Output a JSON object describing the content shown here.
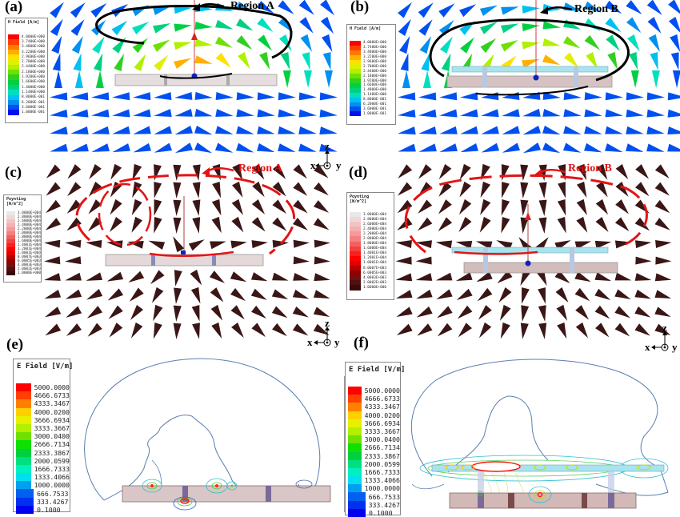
{
  "panels": {
    "a": {
      "label": "(a)",
      "region": "Region A",
      "legend_title": "H Field [A/m]"
    },
    "b": {
      "label": "(b)",
      "region": "Region B",
      "legend_title": "H Field [A/m]"
    },
    "c": {
      "label": "(c)",
      "region": "Region A",
      "legend_title": "Poynting\n[W/m^2]"
    },
    "d": {
      "label": "(d)",
      "region": "Region B",
      "legend_title": "Poynting\n[W/m^2]"
    },
    "e": {
      "label": "(e)",
      "legend_title": "E Field [V/m]"
    },
    "f": {
      "label": "(f)",
      "legend_title": "E Field [V/m]"
    }
  },
  "legends": {
    "h_field": {
      "values": [
        "4.0000E+000",
        "3.7400E+000",
        "3.4800E+000",
        "3.2200E+000",
        "2.9600E+000",
        "2.7000E+000",
        "2.4400E+000",
        "2.1800E+000",
        "1.9200E+000",
        "1.6600E+000",
        "1.4000E+000",
        "1.1400E+000",
        "8.8000E-001",
        "6.2000E-001",
        "3.6000E-001",
        "1.0000E-001"
      ],
      "colors": [
        "#ff0000",
        "#ff4000",
        "#ff7a00",
        "#ffb000",
        "#ffe000",
        "#e0f000",
        "#b0f000",
        "#70e000",
        "#30d020",
        "#00d040",
        "#00d080",
        "#00e0c0",
        "#00c0f0",
        "#0090f0",
        "#0050f0",
        "#0010f0"
      ]
    },
    "poynting": {
      "values": [
        "3.0000E+004",
        "2.8000E+004",
        "2.6000E+004",
        "2.4000E+004",
        "2.2000E+004",
        "2.0000E+004",
        "1.8000E+004",
        "1.6000E+004",
        "1.4001E+004",
        "1.2001E+004",
        "1.0001E+004",
        "8.0007E+003",
        "6.0005E+003",
        "4.0003E+003",
        "2.0002E+003",
        "1.0000E+000"
      ],
      "colors": [
        "#e8e8e8",
        "#f0d8d8",
        "#f2c4c4",
        "#f4b0b0",
        "#f49a9a",
        "#f48080",
        "#f26060",
        "#f44040",
        "#f82020",
        "#ff0000",
        "#e00000",
        "#b80000",
        "#900000",
        "#701010",
        "#501010",
        "#3a0a0a"
      ]
    },
    "e_field": {
      "values": [
        "5000.0000",
        "4666.6733",
        "4333.3467",
        "4000.0200",
        "3666.6934",
        "3333.3667",
        "3000.0400",
        "2666.7134",
        "2333.3867",
        "2000.0599",
        "1666.7333",
        "1333.4066",
        "1000.0000",
        "666.7533",
        "333.4267",
        "0.1000"
      ],
      "colors": [
        "#ff0000",
        "#ff4000",
        "#ff8000",
        "#ffd000",
        "#e8f000",
        "#b0f000",
        "#70e000",
        "#10e000",
        "#00d040",
        "#00e080",
        "#00f0c0",
        "#00e0f0",
        "#00a0f0",
        "#0060f0",
        "#0030f0",
        "#0000f0"
      ]
    }
  },
  "axes": {
    "z": "z",
    "x": "x",
    "y": "y"
  },
  "colors": {
    "annotation_black": "#000000",
    "annotation_red": "#e41414",
    "substrate": "#d9c6c6",
    "top_plate": "#a8e4ee",
    "poynting_arrow": "#3b1616"
  }
}
